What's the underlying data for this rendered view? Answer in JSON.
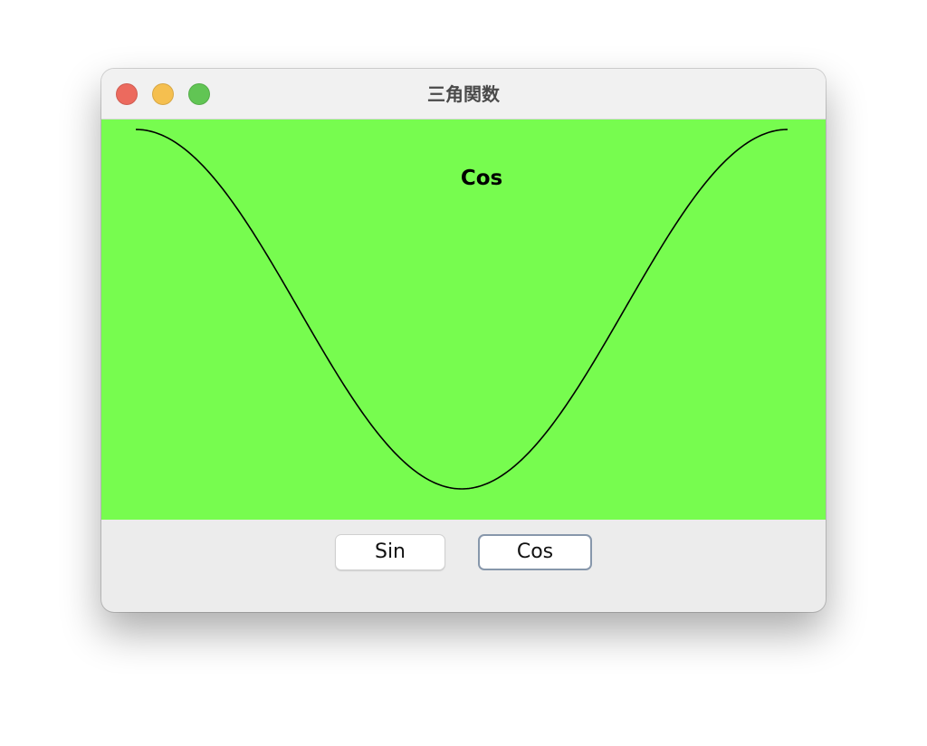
{
  "window": {
    "title": "三角関数",
    "traffic_lights": {
      "close_color": "#ec6a5e",
      "minimize_color": "#f5bf4f",
      "zoom_color": "#61c554"
    }
  },
  "plot": {
    "label": "Cos",
    "background_color": "#77fc4f",
    "line_color": "#000000"
  },
  "controls": {
    "buttons": [
      {
        "label": "Sin",
        "focused": false
      },
      {
        "label": "Cos",
        "focused": true
      }
    ]
  },
  "chart_data": {
    "type": "line",
    "function": "cos",
    "x_domain": [
      0,
      6.2832
    ],
    "ylim": [
      -1,
      1
    ],
    "series": [
      {
        "values": [
          1.0,
          0.9511,
          0.809,
          0.5878,
          0.309,
          0.0,
          -0.309,
          -0.5878,
          -0.809,
          -0.9511,
          -1.0,
          -0.9511,
          -0.809,
          -0.5878,
          -0.309,
          0.0,
          0.309,
          0.5878,
          0.809,
          0.9511,
          1.0
        ]
      }
    ],
    "grid": false,
    "title": "Cos"
  }
}
